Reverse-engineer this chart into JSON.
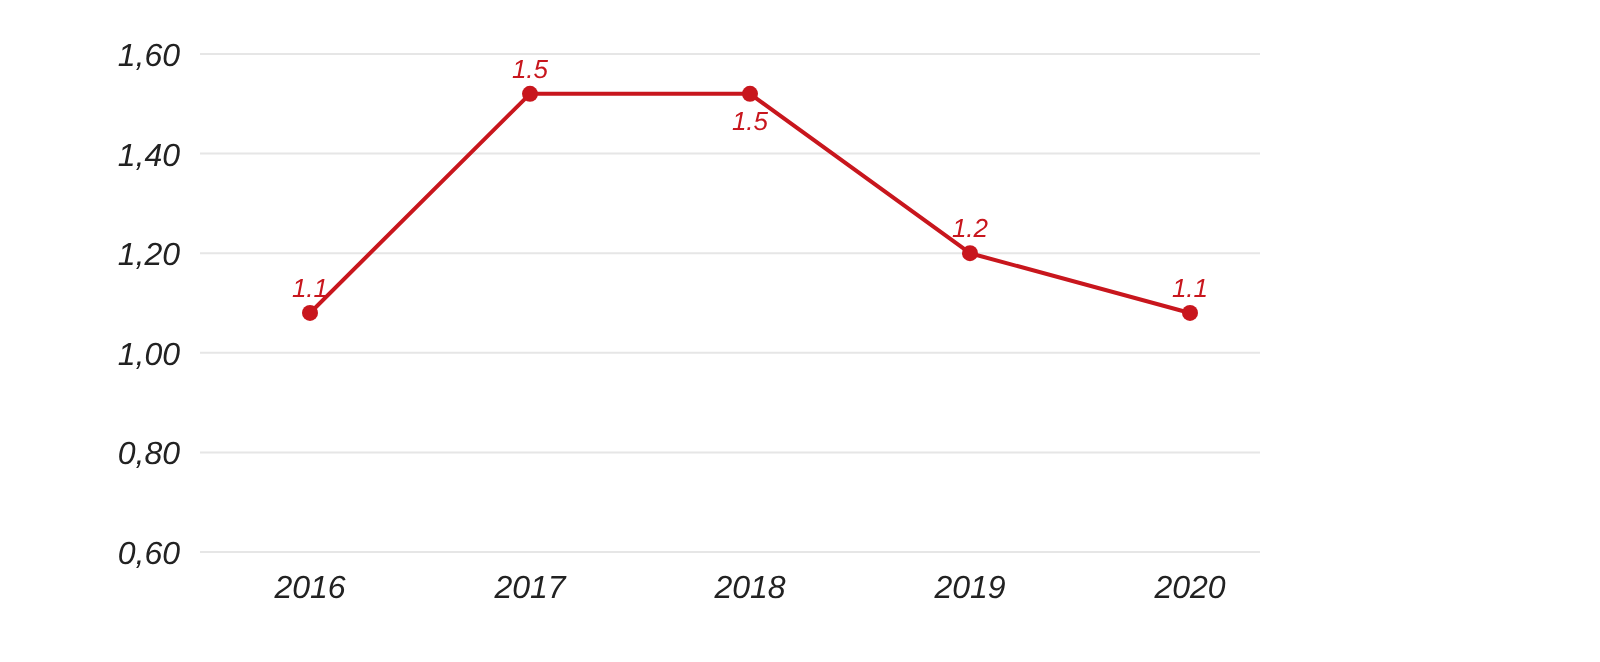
{
  "chart_data": {
    "type": "line",
    "categories": [
      "2016",
      "2017",
      "2018",
      "2019",
      "2020"
    ],
    "series": [
      {
        "color": "#c8161d",
        "values": [
          1.08,
          1.52,
          1.52,
          1.2,
          1.08
        ],
        "value_labels": [
          "1.1",
          "1.5",
          "1.5",
          "1.2",
          "1.1"
        ]
      }
    ],
    "ylim": [
      0.6,
      1.6
    ],
    "yticks": [
      {
        "value": 0.6,
        "label": "0,60"
      },
      {
        "value": 0.8,
        "label": "0,80"
      },
      {
        "value": 1.0,
        "label": "1,00"
      },
      {
        "value": 1.2,
        "label": "1,20"
      },
      {
        "value": 1.4,
        "label": "1,40"
      },
      {
        "value": 1.6,
        "label": "1,60"
      }
    ],
    "grid": "y",
    "marker": "circle",
    "line_style": "solid"
  }
}
